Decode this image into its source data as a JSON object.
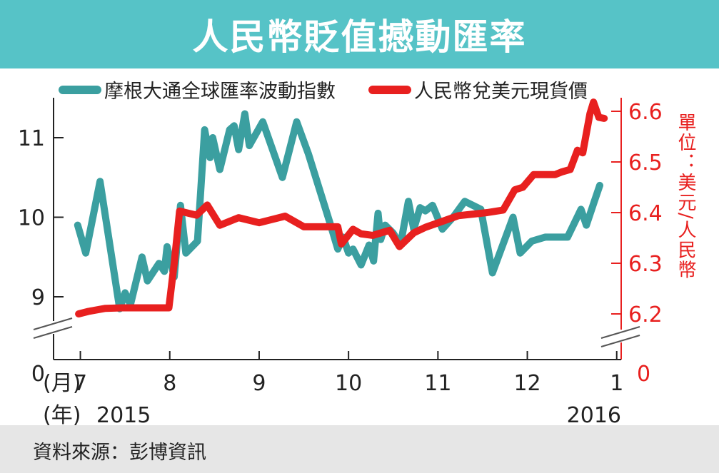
{
  "header": {
    "title": "人民幣貶值撼動匯率"
  },
  "footer": {
    "source": "資料來源：彭博資訊"
  },
  "colors": {
    "banner": "#56c3c7",
    "series_left": "#3b9fa0",
    "series_right": "#e8201f",
    "footer_bg": "#e6e6e6"
  },
  "chart_data": {
    "type": "line",
    "x_unit_label": "(月)",
    "year_unit_label": "(年)",
    "year_start_label": "2015",
    "year_end_label": "2016",
    "month_ticks": [
      {
        "label": "7",
        "x": 7
      },
      {
        "label": "8",
        "x": 8
      },
      {
        "label": "9",
        "x": 9
      },
      {
        "label": "10",
        "x": 10
      },
      {
        "label": "11",
        "x": 11
      },
      {
        "label": "12",
        "x": 12
      },
      {
        "label": "1",
        "x": 13
      }
    ],
    "xlim": [
      6.7,
      13.05
    ],
    "left_axis": {
      "ticks": [
        9,
        10,
        11
      ],
      "zero_label": "0",
      "ylim": [
        8.6,
        11.4
      ],
      "broken": true
    },
    "right_axis": {
      "label": "單位：美元/人民幣",
      "ticks": [
        6.2,
        6.3,
        6.4,
        6.5,
        6.6
      ],
      "tick_labels": [
        "6.2",
        "6.3",
        "6.4",
        "6.5",
        "6.6"
      ],
      "zero_label": "0",
      "ylim": [
        6.17,
        6.65
      ],
      "broken": true
    },
    "legend_position": "top",
    "series": [
      {
        "name": "摩根大通全球匯率波動指數",
        "axis": "left",
        "color": "#3b9fa0",
        "points": [
          [
            6.97,
            9.9
          ],
          [
            7.06,
            9.55
          ],
          [
            7.22,
            10.45
          ],
          [
            7.44,
            8.85
          ],
          [
            7.5,
            9.05
          ],
          [
            7.56,
            8.9
          ],
          [
            7.69,
            9.5
          ],
          [
            7.75,
            9.2
          ],
          [
            7.88,
            9.42
          ],
          [
            7.94,
            9.32
          ],
          [
            7.97,
            9.63
          ],
          [
            8.05,
            9.25
          ],
          [
            8.12,
            10.15
          ],
          [
            8.18,
            9.55
          ],
          [
            8.31,
            9.7
          ],
          [
            8.39,
            11.1
          ],
          [
            8.45,
            10.75
          ],
          [
            8.48,
            11.0
          ],
          [
            8.56,
            10.6
          ],
          [
            8.67,
            11.1
          ],
          [
            8.72,
            11.15
          ],
          [
            8.77,
            10.85
          ],
          [
            8.84,
            11.3
          ],
          [
            8.89,
            10.9
          ],
          [
            9.04,
            11.2
          ],
          [
            9.26,
            10.5
          ],
          [
            9.42,
            11.2
          ],
          [
            9.55,
            10.8
          ],
          [
            9.8,
            9.9
          ],
          [
            9.88,
            9.6
          ],
          [
            9.94,
            9.75
          ],
          [
            10.0,
            9.55
          ],
          [
            10.05,
            9.6
          ],
          [
            10.14,
            9.4
          ],
          [
            10.23,
            9.65
          ],
          [
            10.28,
            9.45
          ],
          [
            10.33,
            10.05
          ],
          [
            10.36,
            9.72
          ],
          [
            10.41,
            9.9
          ],
          [
            10.5,
            9.8
          ],
          [
            10.58,
            9.65
          ],
          [
            10.67,
            10.2
          ],
          [
            10.73,
            9.85
          ],
          [
            10.8,
            10.12
          ],
          [
            10.86,
            10.08
          ],
          [
            10.94,
            10.15
          ],
          [
            11.05,
            9.85
          ],
          [
            11.17,
            10.0
          ],
          [
            11.3,
            10.2
          ],
          [
            11.48,
            10.1
          ],
          [
            11.61,
            9.3
          ],
          [
            11.84,
            10.0
          ],
          [
            11.92,
            9.55
          ],
          [
            12.05,
            9.7
          ],
          [
            12.2,
            9.75
          ],
          [
            12.45,
            9.75
          ],
          [
            12.6,
            10.1
          ],
          [
            12.66,
            9.9
          ],
          [
            12.75,
            10.2
          ],
          [
            12.81,
            10.4
          ]
        ]
      },
      {
        "name": "人民幣兌美元現貨價",
        "axis": "right",
        "color": "#e8201f",
        "points": [
          [
            6.98,
            6.2
          ],
          [
            7.09,
            6.205
          ],
          [
            7.28,
            6.211
          ],
          [
            7.47,
            6.212
          ],
          [
            7.72,
            6.212
          ],
          [
            7.9,
            6.212
          ],
          [
            7.99,
            6.212
          ],
          [
            8.05,
            6.3
          ],
          [
            8.11,
            6.403
          ],
          [
            8.3,
            6.395
          ],
          [
            8.42,
            6.415
          ],
          [
            8.56,
            6.375
          ],
          [
            8.77,
            6.39
          ],
          [
            9.0,
            6.38
          ],
          [
            9.29,
            6.393
          ],
          [
            9.5,
            6.372
          ],
          [
            9.88,
            6.372
          ],
          [
            9.92,
            6.338
          ],
          [
            10.05,
            6.367
          ],
          [
            10.14,
            6.358
          ],
          [
            10.27,
            6.355
          ],
          [
            10.46,
            6.365
          ],
          [
            10.57,
            6.333
          ],
          [
            10.73,
            6.36
          ],
          [
            10.86,
            6.371
          ],
          [
            11.23,
            6.394
          ],
          [
            11.55,
            6.4
          ],
          [
            11.73,
            6.405
          ],
          [
            11.86,
            6.445
          ],
          [
            11.95,
            6.45
          ],
          [
            12.07,
            6.475
          ],
          [
            12.31,
            6.475
          ],
          [
            12.38,
            6.48
          ],
          [
            12.48,
            6.485
          ],
          [
            12.56,
            6.523
          ],
          [
            12.62,
            6.518
          ],
          [
            12.7,
            6.595
          ],
          [
            12.74,
            6.618
          ],
          [
            12.8,
            6.588
          ],
          [
            12.86,
            6.586
          ]
        ]
      }
    ]
  }
}
